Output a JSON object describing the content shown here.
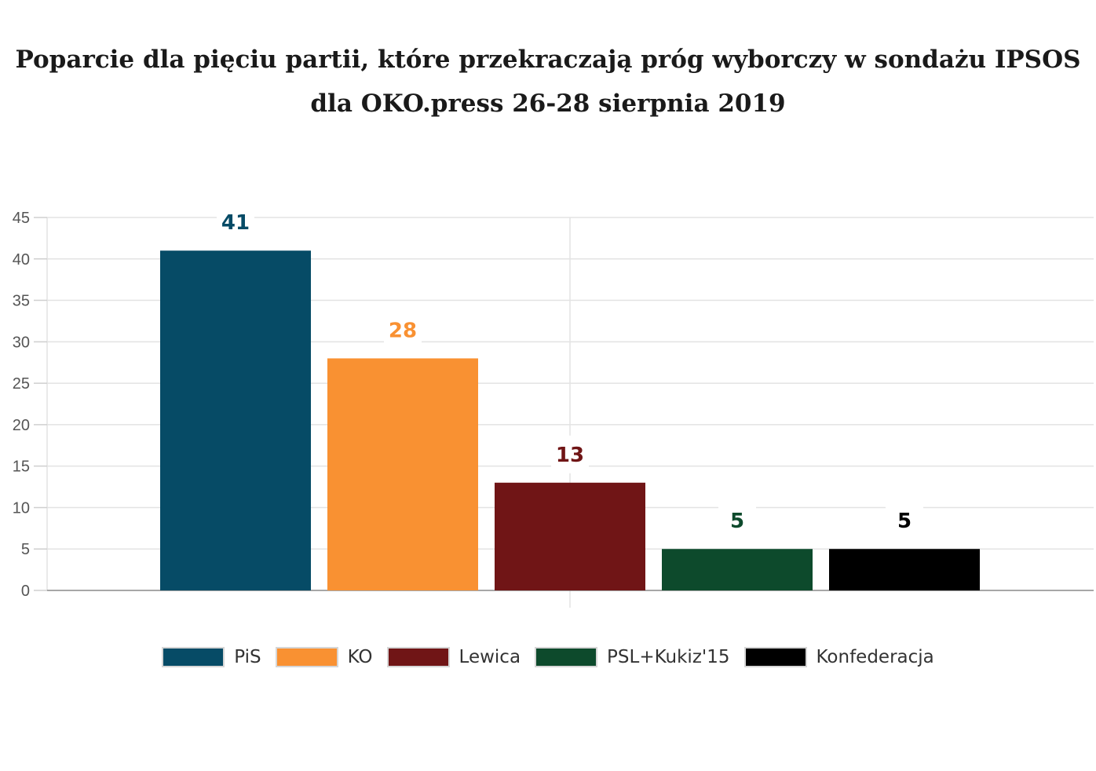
{
  "chart_data": {
    "type": "bar",
    "title": "Poparcie dla pięciu partii, które przekraczają próg wyborczy w sondażu IPSOS dla OKO.press 26-28 sierpnia 2019",
    "categories": [
      "PiS",
      "KO",
      "Lewica",
      "PSL+Kukiz'15",
      "Konfederacja"
    ],
    "values": [
      41,
      28,
      13,
      5,
      5
    ],
    "data_labels": [
      "41",
      "28",
      "13",
      "5",
      "5"
    ],
    "colors": [
      "#064b66",
      "#f99132",
      "#701516",
      "#0d4a2c",
      "#000000"
    ],
    "ylim": [
      0,
      45
    ],
    "yticks": [
      0,
      5,
      10,
      15,
      20,
      25,
      30,
      35,
      40,
      45
    ],
    "grid": true,
    "legend": "bottom"
  }
}
